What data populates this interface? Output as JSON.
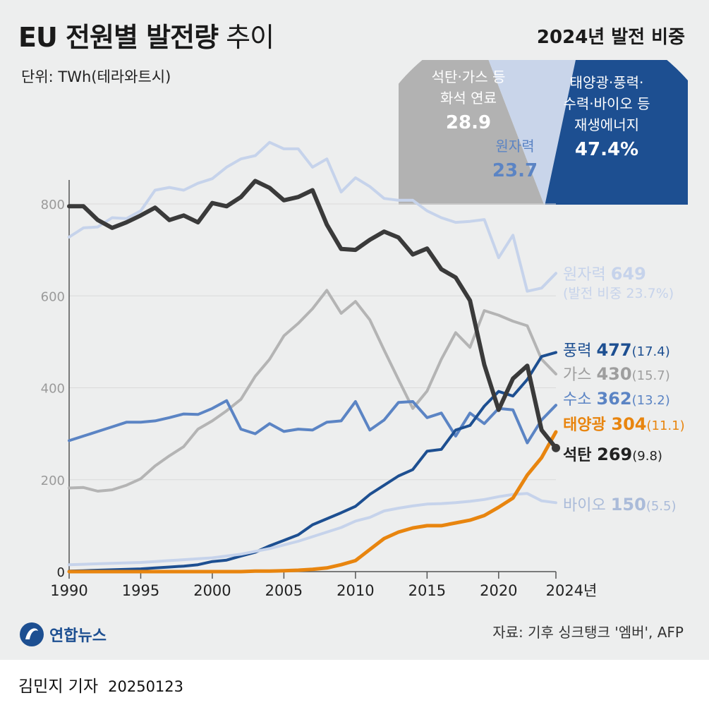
{
  "header": {
    "title_bold": "EU 전원별 발전량",
    "title_light": " 추이",
    "unit": "단위: TWh(테라와트시)",
    "share_title": "2024년 발전 비중"
  },
  "pie": {
    "segments": [
      {
        "label_lines": [
          "석탄·가스 등",
          "화석 연료"
        ],
        "value": "28.9",
        "pct": 28.9,
        "color": "#b2b2b2"
      },
      {
        "label_lines": [
          "원자력"
        ],
        "value": "23.7",
        "pct": 23.7,
        "color": "#c9d5ea"
      },
      {
        "label_lines": [
          "태양광·풍력·",
          "수력·바이오 등",
          "재생에너지"
        ],
        "value": "47.4%",
        "pct": 47.4,
        "color": "#1d4f91"
      }
    ]
  },
  "chart_data": {
    "type": "line",
    "x": [
      1990,
      1991,
      1992,
      1993,
      1994,
      1995,
      1996,
      1997,
      1998,
      1999,
      2000,
      2001,
      2002,
      2003,
      2004,
      2005,
      2006,
      2007,
      2008,
      2009,
      2010,
      2011,
      2012,
      2013,
      2014,
      2015,
      2016,
      2017,
      2018,
      2019,
      2020,
      2021,
      2022,
      2023,
      2024
    ],
    "x_ticks": [
      "1990",
      "1995",
      "2000",
      "2005",
      "2010",
      "2015",
      "2020",
      "2024년"
    ],
    "y_ticks": [
      0,
      200,
      400,
      600,
      800
    ],
    "ylim": [
      0,
      960
    ],
    "series": [
      {
        "name": "원자력",
        "value": "649",
        "share": "(발전 비중 23.7%)",
        "color": "#c6d3eb",
        "width": 4,
        "values": [
          728,
          748,
          750,
          770,
          768,
          785,
          830,
          836,
          830,
          845,
          855,
          880,
          898,
          905,
          934,
          920,
          920,
          880,
          898,
          826,
          857,
          838,
          812,
          808,
          808,
          785,
          770,
          760,
          762,
          766,
          683,
          732,
          610,
          617,
          649
        ]
      },
      {
        "name": "가스",
        "value": "430",
        "share": "(15.7)",
        "color": "#b4b4b4",
        "width": 4,
        "values": [
          182,
          183,
          175,
          178,
          188,
          202,
          230,
          252,
          272,
          310,
          328,
          350,
          375,
          425,
          462,
          513,
          540,
          572,
          612,
          562,
          588,
          548,
          482,
          418,
          355,
          393,
          462,
          520,
          488,
          568,
          558,
          545,
          535,
          462,
          430
        ]
      },
      {
        "name": "수소",
        "value": "362",
        "share": "(13.2)",
        "color": "#5b84c4",
        "width": 4,
        "values": [
          285,
          295,
          305,
          315,
          325,
          325,
          328,
          335,
          343,
          342,
          355,
          372,
          310,
          300,
          322,
          305,
          310,
          308,
          325,
          328,
          370,
          308,
          330,
          368,
          370,
          335,
          345,
          295,
          345,
          322,
          355,
          352,
          280,
          330,
          362
        ]
      },
      {
        "name": "풍력",
        "value": "477",
        "share": "(17.4)",
        "color": "#1d4f91",
        "width": 4,
        "values": [
          1,
          2,
          3,
          4,
          5,
          6,
          8,
          10,
          12,
          15,
          22,
          25,
          34,
          42,
          56,
          68,
          80,
          102,
          115,
          128,
          142,
          168,
          188,
          208,
          222,
          262,
          266,
          308,
          318,
          360,
          392,
          382,
          418,
          468,
          477
        ]
      },
      {
        "name": "바이오",
        "value": "150",
        "share": "(5.5)",
        "color": "#c6d3eb",
        "width": 4,
        "values": [
          15,
          16,
          17,
          18,
          19,
          20,
          22,
          24,
          26,
          28,
          30,
          34,
          38,
          44,
          50,
          58,
          66,
          76,
          86,
          96,
          110,
          118,
          132,
          138,
          143,
          147,
          148,
          150,
          153,
          157,
          163,
          168,
          170,
          154,
          150
        ]
      },
      {
        "name": "태양광",
        "value": "304",
        "share": "(11.1)",
        "color": "#e8850f",
        "width": 5,
        "values": [
          0,
          0,
          0,
          0,
          0,
          0,
          0,
          0,
          0,
          0,
          0,
          0,
          0,
          1,
          1,
          2,
          3,
          5,
          8,
          15,
          24,
          48,
          72,
          86,
          95,
          100,
          100,
          106,
          112,
          122,
          140,
          160,
          210,
          248,
          304
        ]
      },
      {
        "name": "석탄",
        "value": "269",
        "share": "(9.8)",
        "color": "#3a3a3a",
        "width": 6,
        "values": [
          795,
          795,
          765,
          748,
          760,
          775,
          792,
          765,
          775,
          760,
          802,
          795,
          815,
          850,
          835,
          808,
          815,
          830,
          755,
          702,
          700,
          722,
          740,
          727,
          690,
          703,
          658,
          640,
          590,
          450,
          352,
          420,
          448,
          308,
          269
        ]
      }
    ]
  },
  "footer": {
    "logo_text": "연합뉴스",
    "source": "자료: 기후 싱크탱크 '엠버', AFP",
    "author": "김민지 기자",
    "date": "20250123"
  }
}
